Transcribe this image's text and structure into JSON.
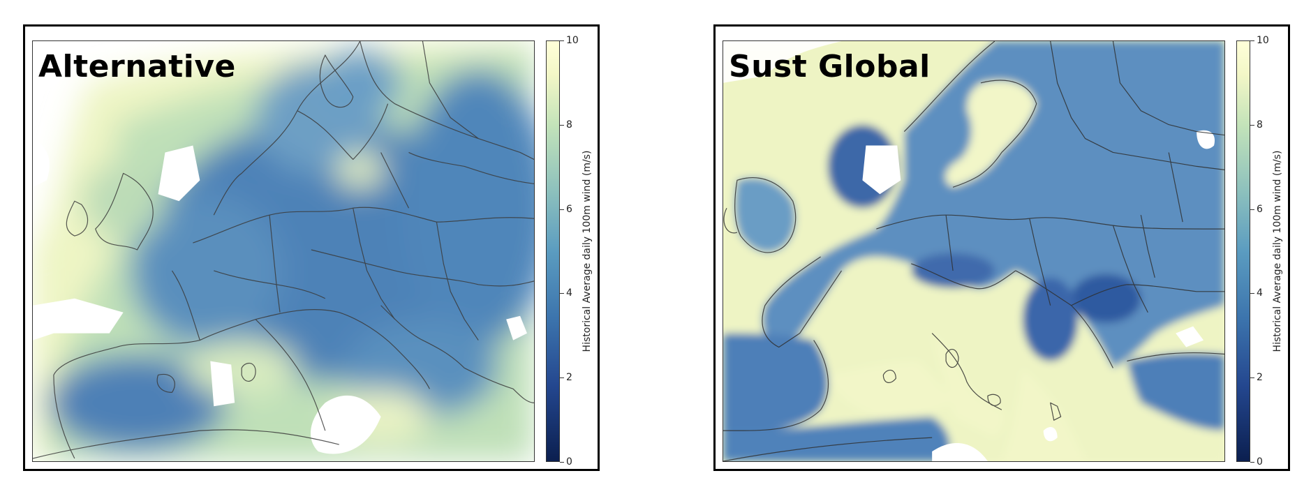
{
  "panels": [
    {
      "title": "Alternative",
      "colorbar": {
        "label": "Historical Average daily 100m wind (m/s)",
        "ticks": [
          "0",
          "2",
          "4",
          "6",
          "8",
          "10"
        ],
        "range": [
          0,
          10
        ],
        "colormap": "YlGnBu_r",
        "colors": [
          "#0b1f4f",
          "#3c74ad",
          "#8cc0bd",
          "#ffffd9"
        ]
      }
    },
    {
      "title": "Sust Global",
      "colorbar": {
        "label": "Historical Average daily 100m wind (m/s)",
        "ticks": [
          "0",
          "2",
          "4",
          "6",
          "8",
          "10"
        ],
        "range": [
          0,
          10
        ],
        "colormap": "YlGnBu_r",
        "colors": [
          "#0b1f4f",
          "#3c74ad",
          "#8cc0bd",
          "#ffffd9"
        ]
      }
    }
  ]
}
